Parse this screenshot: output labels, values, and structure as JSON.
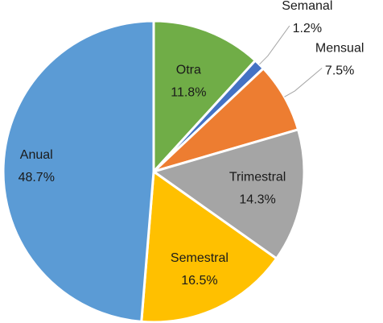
{
  "chart_data": {
    "type": "pie",
    "categories": [
      "Otra",
      "Semanal",
      "Mensual",
      "Trimestral",
      "Semestral",
      "Anual"
    ],
    "values": [
      11.8,
      1.2,
      7.5,
      14.3,
      16.5,
      48.7
    ],
    "value_labels": [
      "11.8%",
      "1.2%",
      "7.5%",
      "14.3%",
      "16.5%",
      "48.7%"
    ],
    "colors": [
      "#70ad47",
      "#4472c4",
      "#ed7d31",
      "#a5a5a5",
      "#ffc000",
      "#5b9bd5"
    ]
  }
}
